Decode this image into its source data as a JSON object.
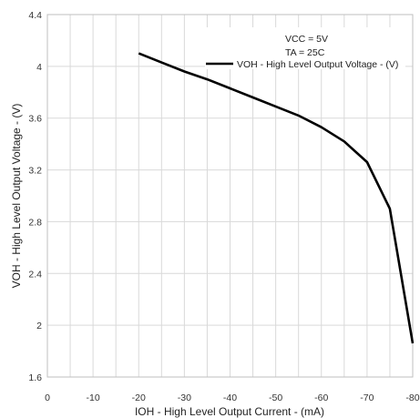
{
  "chart_data": {
    "type": "line",
    "xlabel": "IOH - High Level Output Current - (mA)",
    "ylabel": "VOH - High Level Output Voltage - (V)",
    "xlim": [
      0,
      -80
    ],
    "ylim": [
      1.6,
      4.4
    ],
    "x_ticks": [
      0,
      -10,
      -20,
      -30,
      -40,
      -50,
      -60,
      -70,
      -80
    ],
    "x_tick_labels": [
      "0",
      "-10",
      "-20",
      "-30",
      "-40",
      "-50",
      "-60",
      "-70",
      "-80"
    ],
    "y_ticks": [
      1.6,
      2,
      2.4,
      2.8,
      3.2,
      3.6,
      4,
      4.4
    ],
    "y_tick_labels": [
      "1.6",
      "2",
      "2.4",
      "2.8",
      "3.2",
      "3.6",
      "4",
      "4.4"
    ],
    "x_minor_grid_step": 5,
    "grid": true,
    "legend_position": "top-right",
    "annotations": [
      "VCC = 5V",
      "TA = 25C"
    ],
    "series": [
      {
        "name": "VOH - High Level Output Voltage - (V)",
        "color": "#000000",
        "x": [
          -20,
          -25,
          -30,
          -35,
          -40,
          -45,
          -50,
          -55,
          -60,
          -65,
          -70,
          -75,
          -80
        ],
        "y": [
          4.1,
          4.03,
          3.96,
          3.9,
          3.83,
          3.76,
          3.69,
          3.62,
          3.53,
          3.42,
          3.26,
          2.9,
          1.86
        ]
      }
    ]
  }
}
